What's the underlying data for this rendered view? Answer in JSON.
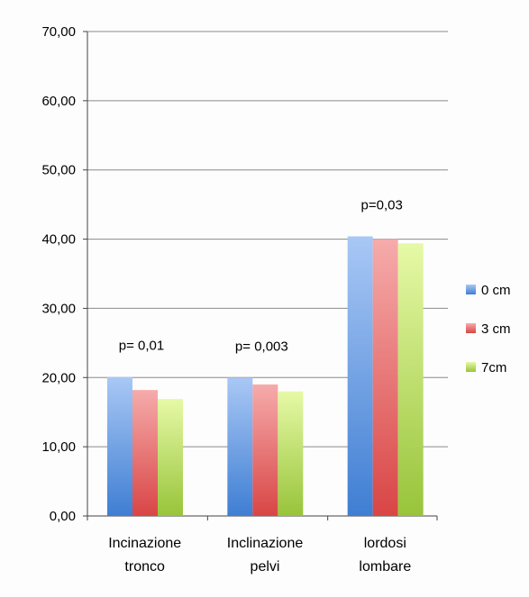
{
  "chart_data": {
    "type": "bar",
    "title": "",
    "xlabel": "",
    "ylabel": "",
    "ylim": [
      0,
      70
    ],
    "yticks": [
      "0,00",
      "10,00",
      "20,00",
      "30,00",
      "40,00",
      "50,00",
      "60,00",
      "70,00"
    ],
    "grid": true,
    "legend_position": "right",
    "categories": [
      [
        "Incinazione",
        "tronco"
      ],
      [
        "Inclinazione",
        "pelvi"
      ],
      [
        "lordosi",
        "lombare"
      ]
    ],
    "series": [
      {
        "name": "0 cm",
        "values": [
          20.1,
          20.0,
          40.4
        ],
        "color_top": "#a9c8f5",
        "color_bottom": "#3f7ed3"
      },
      {
        "name": "3 cm",
        "values": [
          18.2,
          19.0,
          40.0
        ],
        "color_top": "#f6abab",
        "color_bottom": "#d94545"
      },
      {
        "name": "7cm",
        "values": [
          16.9,
          18.0,
          39.4
        ],
        "color_top": "#e6f9a6",
        "color_bottom": "#98c43a"
      }
    ],
    "annotations": [
      {
        "text": "p= 0,01",
        "category_index": 0
      },
      {
        "text": "p= 0,003",
        "category_index": 1
      },
      {
        "text": "p=0,03",
        "category_index": 2
      }
    ]
  }
}
